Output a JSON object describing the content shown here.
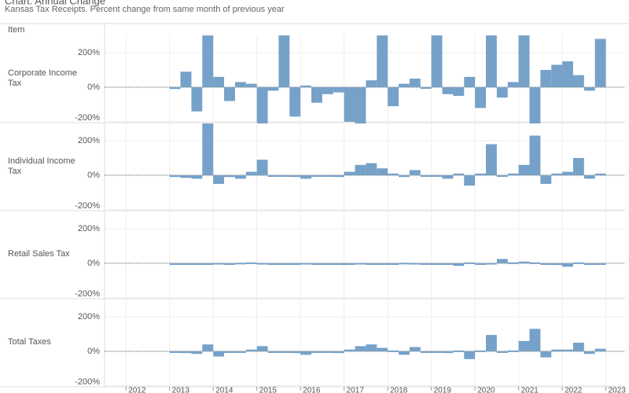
{
  "chart_data": {
    "type": "bar",
    "title": "Chart: Annual Change",
    "subtitle": "Kansas Tax Receipts. Percent change from same month of previous year",
    "row_header": "Item",
    "x": [
      2013.0,
      2013.25,
      2013.5,
      2013.75,
      2014.0,
      2014.25,
      2014.5,
      2014.75,
      2015.0,
      2015.25,
      2015.5,
      2015.75,
      2016.0,
      2016.25,
      2016.5,
      2016.75,
      2017.0,
      2017.25,
      2017.5,
      2017.75,
      2018.0,
      2018.25,
      2018.5,
      2018.75,
      2019.0,
      2019.25,
      2019.5,
      2019.75,
      2020.0,
      2020.25,
      2020.5,
      2020.75,
      2021.0,
      2021.25,
      2021.5,
      2021.75,
      2022.0,
      2022.25,
      2022.5,
      2022.75
    ],
    "color": "#76a1c8",
    "series": [
      {
        "name": "Corporate Income Tax",
        "values": [
          -10,
          90,
          -140,
          300,
          60,
          -80,
          30,
          20,
          -210,
          -20,
          300,
          -170,
          10,
          -90,
          -40,
          -30,
          -200,
          -210,
          40,
          300,
          -110,
          20,
          50,
          0,
          300,
          -40,
          -50,
          60,
          -120,
          300,
          -60,
          30,
          300,
          -210,
          100,
          130,
          150,
          70,
          -20,
          280
        ]
      },
      {
        "name": "Individual Income Tax",
        "values": [
          -10,
          -15,
          -20,
          300,
          -50,
          -10,
          -20,
          20,
          90,
          0,
          -5,
          -10,
          -20,
          0,
          -5,
          -10,
          20,
          60,
          70,
          40,
          10,
          -10,
          30,
          0,
          -5,
          -20,
          10,
          -60,
          10,
          180,
          -5,
          10,
          60,
          230,
          -50,
          10,
          20,
          100,
          -20,
          10
        ]
      },
      {
        "name": "Retail Sales Tax",
        "values": [
          0,
          -3,
          -2,
          -3,
          2,
          0,
          3,
          5,
          2,
          -2,
          -3,
          0,
          2,
          0,
          -2,
          -3,
          0,
          2,
          0,
          -2,
          -1,
          3,
          2,
          -1,
          0,
          -5,
          -15,
          5,
          0,
          2,
          25,
          5,
          10,
          5,
          -5,
          -10,
          -20,
          5,
          0,
          -3
        ]
      },
      {
        "name": "Total Taxes",
        "values": [
          -5,
          -10,
          -15,
          40,
          -30,
          -5,
          -5,
          10,
          30,
          0,
          -5,
          -10,
          -20,
          0,
          -5,
          -10,
          10,
          30,
          40,
          20,
          5,
          -20,
          25,
          0,
          -5,
          -10,
          5,
          -45,
          5,
          95,
          0,
          5,
          60,
          130,
          -35,
          10,
          10,
          50,
          -15,
          15
        ]
      }
    ],
    "ylim": [
      -205,
      305
    ],
    "yticks": [
      {
        "value": -200,
        "label": "-200%"
      },
      {
        "value": 0,
        "label": "0%"
      },
      {
        "value": 200,
        "label": "200%"
      }
    ],
    "xlim": [
      2011.51,
      2023.44
    ],
    "xticks": [
      2012,
      2013,
      2014,
      2015,
      2016,
      2017,
      2018,
      2019,
      2020,
      2021,
      2022,
      2023
    ],
    "grid": true
  }
}
